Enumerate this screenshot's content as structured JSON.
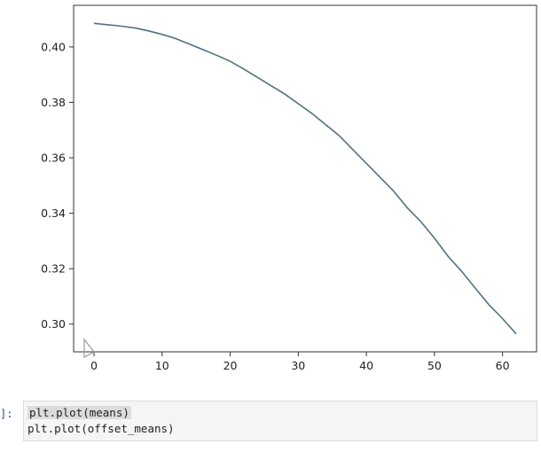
{
  "notebook": {
    "prompt": "]:",
    "code_lines": [
      "plt.plot(means)",
      "plt.plot(offset_means)"
    ]
  },
  "chart_data": {
    "type": "line",
    "xlim": [
      -3,
      65
    ],
    "ylim": [
      0.29,
      0.415
    ],
    "x_ticks": [
      0,
      10,
      20,
      30,
      40,
      50,
      60
    ],
    "y_ticks": [
      0.3,
      0.32,
      0.34,
      0.36,
      0.38,
      0.4
    ],
    "grid": false,
    "line_color": "#51717f",
    "series": [
      {
        "x": [
          0,
          2,
          4,
          6,
          8,
          10,
          12,
          14,
          16,
          18,
          20,
          22,
          24,
          26,
          28,
          30,
          32,
          34,
          36,
          38,
          40,
          42,
          44,
          46,
          48,
          50,
          52,
          54,
          56,
          58,
          60,
          62
        ],
        "values": [
          0.4085,
          0.408,
          0.4075,
          0.4068,
          0.4058,
          0.4045,
          0.403,
          0.401,
          0.399,
          0.397,
          0.3948,
          0.392,
          0.389,
          0.386,
          0.383,
          0.3795,
          0.376,
          0.372,
          0.368,
          0.363,
          0.358,
          0.353,
          0.348,
          0.342,
          0.337,
          0.331,
          0.3245,
          0.319,
          0.313,
          0.307,
          0.302,
          0.2965
        ]
      }
    ]
  }
}
